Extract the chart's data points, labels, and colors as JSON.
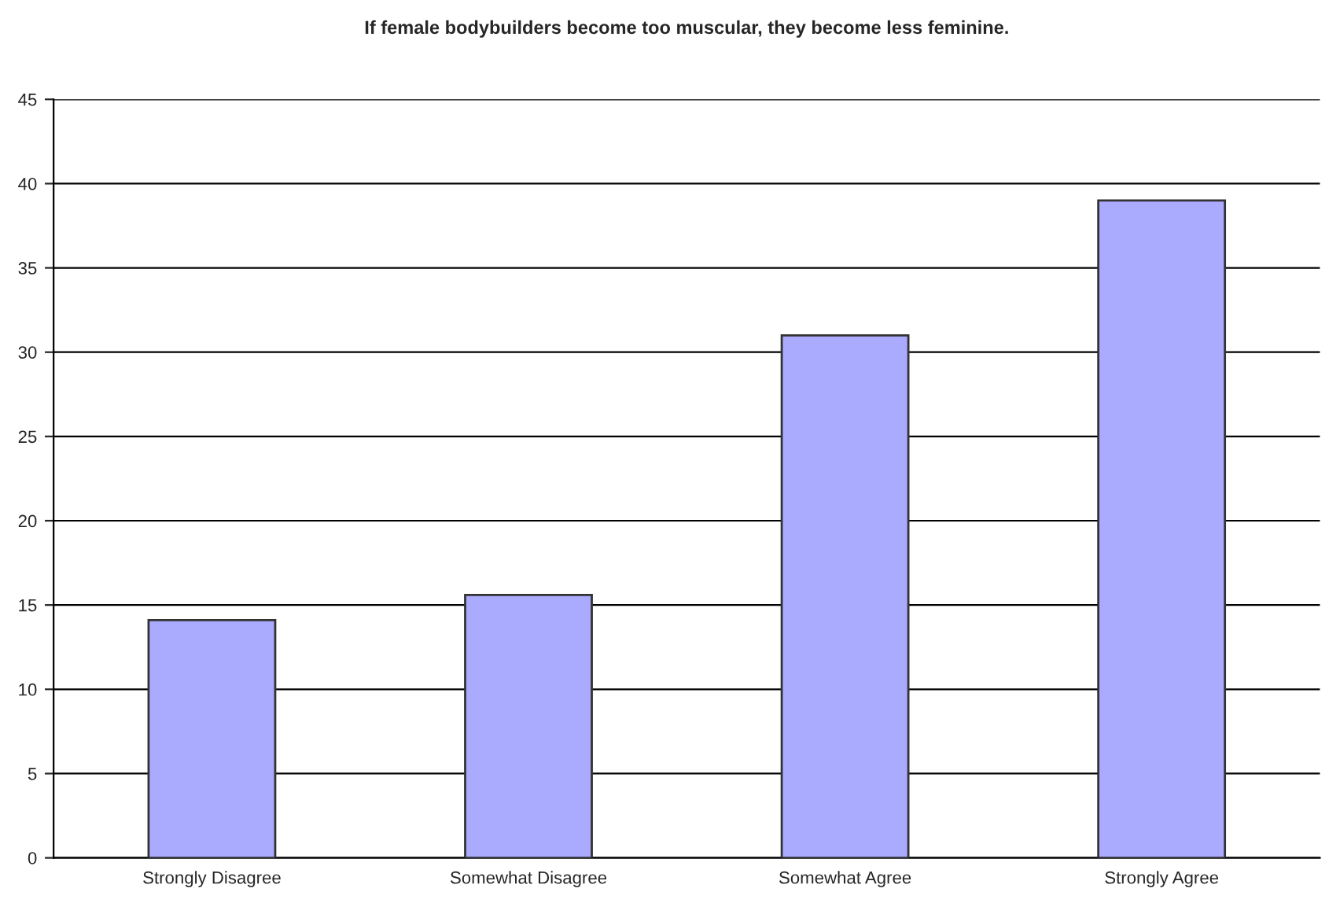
{
  "chart_data": {
    "type": "bar",
    "title": "If female bodybuilders become too muscular, they become less feminine.",
    "categories": [
      "Strongly Disagree",
      "Somewhat Disagree",
      "Somewhat Agree",
      "Strongly Agree"
    ],
    "values": [
      14.1,
      15.6,
      31.0,
      39.0
    ],
    "color": "#aaaaff",
    "ylim": [
      0,
      45
    ],
    "yticks": [
      0,
      5,
      10,
      15,
      20,
      25,
      30,
      35,
      40,
      45
    ],
    "grid": "y",
    "legend": false
  }
}
